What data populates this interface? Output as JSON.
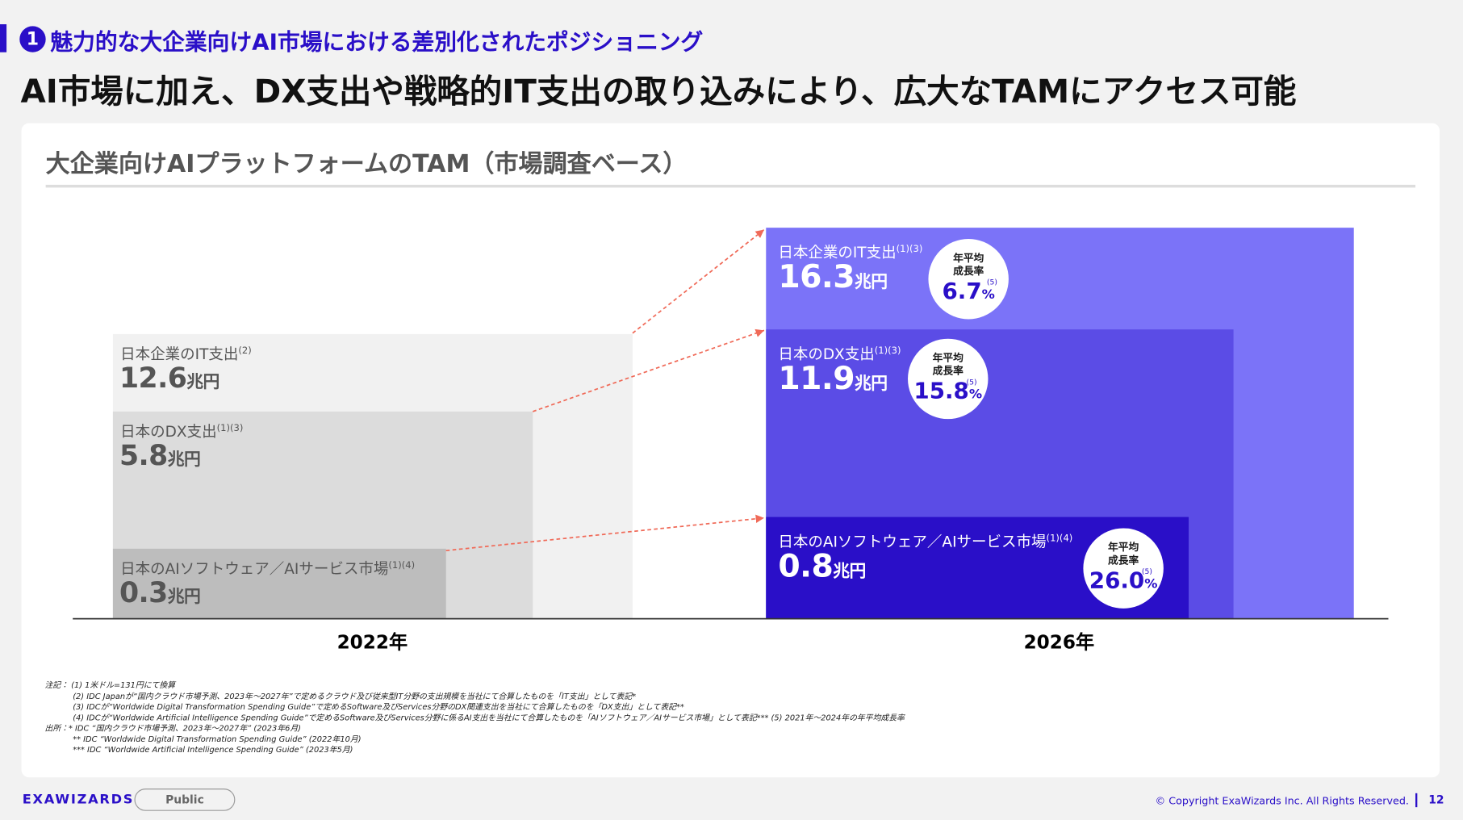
{
  "header": {
    "number": "1",
    "subtitle": "魅力的な大企業向けAI市場における差別化されたポジショニング",
    "title": "AI市場に加え、DX支出や戦略的IT支出の取り込みにより、広大なTAMにアクセス可能"
  },
  "panel": {
    "title": "大企業向けAIプラットフォームのTAM（市場調査ベース）",
    "years": [
      "2022年",
      "2026年"
    ],
    "blocks_2022": [
      {
        "label": "日本企業のIT支出",
        "note": "(2)",
        "value": 12.6,
        "unit": "兆円"
      },
      {
        "label": "日本のDX支出",
        "note": "(1)(3)",
        "value": 5.8,
        "unit": "兆円"
      },
      {
        "label": "日本のAIソフトウェア／AIサービス市場",
        "note": "(1)(4)",
        "value": 0.3,
        "unit": "兆円"
      }
    ],
    "blocks_2026": [
      {
        "label": "日本企業のIT支出",
        "note": "(1)(3)",
        "value": 16.3,
        "unit": "兆円",
        "cagr_title": [
          "年平均",
          "成長率"
        ],
        "cagr": 6.7,
        "cagr_unit": "%",
        "cagr_note": "(5)"
      },
      {
        "label": "日本のDX支出",
        "note": "(1)(3)",
        "value": 11.9,
        "unit": "兆円",
        "cagr_title": [
          "年平均",
          "成長率"
        ],
        "cagr": 15.8,
        "cagr_unit": "%",
        "cagr_note": "(5)"
      },
      {
        "label": "日本のAIソフトウェア／AIサービス市場",
        "note": "(1)(4)",
        "value": 0.8,
        "unit": "兆円",
        "cagr_title": [
          "年平均",
          "成長率"
        ],
        "cagr": 26.0,
        "cagr_unit": "%",
        "cagr_note": "(5)"
      }
    ]
  },
  "footnotes": [
    "注記： (1) 1米ドル=131円にて換算",
    "(2) IDC Japanが“国内クラウド市場予測、2023年～2027年”で定めるクラウド及び従来型IT分野の支出規模を当社にて合算したものを「IT支出」として表記*",
    "(3) IDCが“Worldwide Digital Transformation Spending Guide”で定めるSoftware及びServices分野のDX関連支出を当社にて合算したものを「DX支出」として表記**",
    "(4) IDCが“Worldwide Artificial Intelligence Spending Guide”で定めるSoftware及びServices分野に係るAI支出を当社にて合算したものを「AIソフトウェア／AIサービス市場」として表記*** (5) 2021年～2024年の年平均成長率",
    "出所：* IDC “国内クラウド市場予測、2023年～2027年” (2023年6月)",
    "** IDC “Worldwide Digital Transformation Spending Guide” (2022年10月)",
    "*** IDC “Worldwide Artificial Intelligence Spending Guide” (2023年5月)"
  ],
  "footer": {
    "brand": "EXAWIZARDS",
    "tag": "Public",
    "copyright": "© Copyright ExaWizards Inc. All Rights Reserved.",
    "page": 12
  }
}
